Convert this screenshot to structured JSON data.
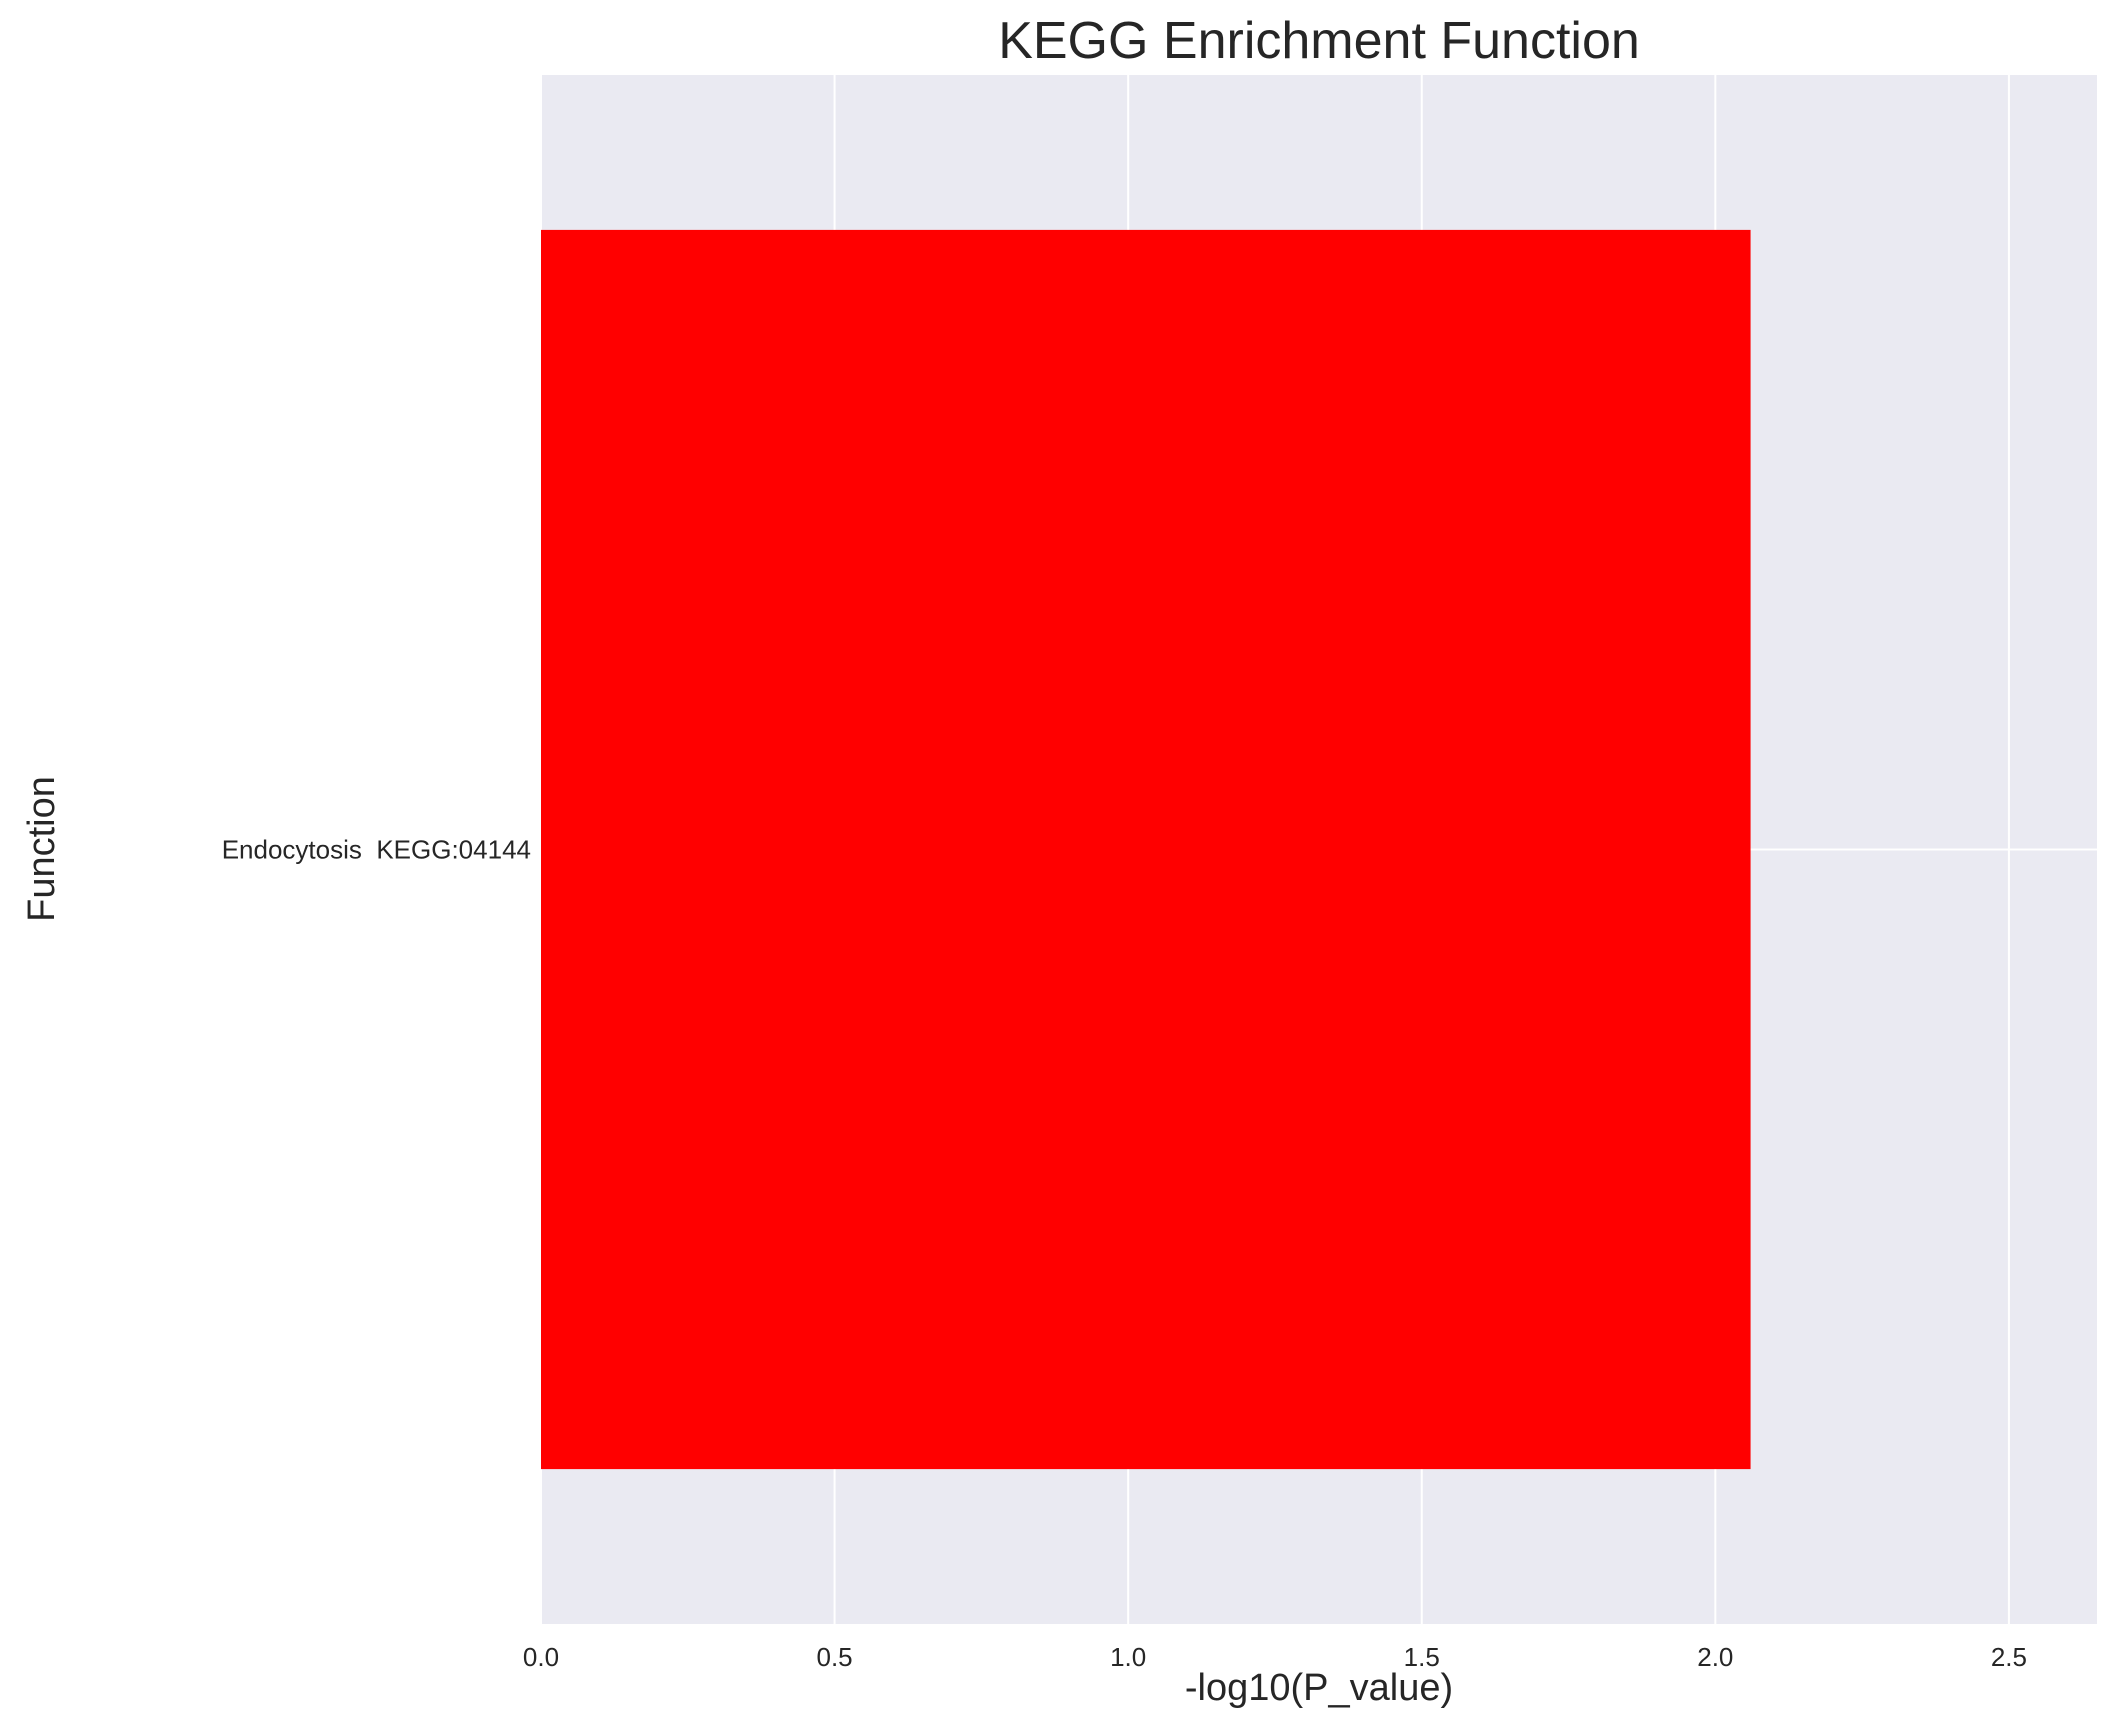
{
  "chart_data": {
    "type": "bar",
    "orientation": "horizontal",
    "title": "KEGG Enrichment Function",
    "xlabel": "-log10(P_value)",
    "ylabel": "Function",
    "categories": [
      "Endocytosis  KEGG:04144"
    ],
    "values": [
      2.06
    ],
    "xlim": [
      0,
      2.65
    ],
    "xticks": [
      0.0,
      0.5,
      1.0,
      1.5,
      2.0,
      2.5
    ],
    "xtick_labels": [
      "0.0",
      "0.5",
      "1.0",
      "1.5",
      "2.0",
      "2.5"
    ],
    "grid": true,
    "colors": {
      "bar": "#ff0000",
      "plot_background": "#eaeaf2",
      "grid": "#ffffff"
    }
  }
}
